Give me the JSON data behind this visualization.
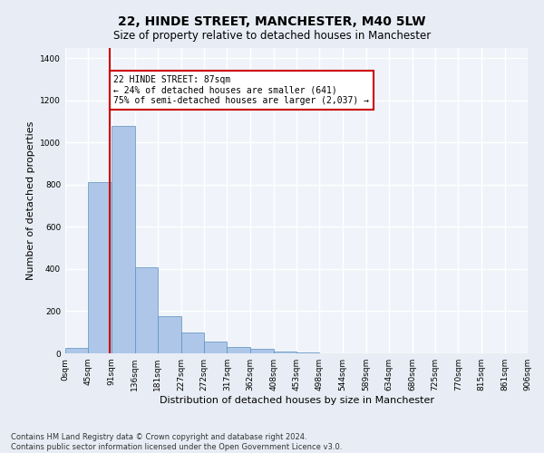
{
  "title": "22, HINDE STREET, MANCHESTER, M40 5LW",
  "subtitle": "Size of property relative to detached houses in Manchester",
  "xlabel": "Distribution of detached houses by size in Manchester",
  "ylabel": "Number of detached properties",
  "footer_line1": "Contains HM Land Registry data © Crown copyright and database right 2024.",
  "footer_line2": "Contains public sector information licensed under the Open Government Licence v3.0.",
  "annotation_title": "22 HINDE STREET: 87sqm",
  "annotation_line1": "← 24% of detached houses are smaller (641)",
  "annotation_line2": "75% of semi-detached houses are larger (2,037) →",
  "property_size": 87,
  "bar_edges": [
    0,
    45,
    91,
    136,
    181,
    227,
    272,
    317,
    362,
    408,
    453,
    498,
    544,
    589,
    634,
    680,
    725,
    770,
    815,
    861,
    906
  ],
  "bar_heights": [
    25,
    810,
    1080,
    410,
    178,
    100,
    55,
    30,
    20,
    8,
    3,
    2,
    1,
    0,
    0,
    0,
    0,
    0,
    0,
    0
  ],
  "bar_color": "#aec6e8",
  "bar_edge_color": "#5a8fc0",
  "red_line_x": 87,
  "red_line_color": "#cc0000",
  "annotation_box_color": "#cc0000",
  "ylim": [
    0,
    1450
  ],
  "yticks": [
    0,
    200,
    400,
    600,
    800,
    1000,
    1200,
    1400
  ],
  "bg_color": "#e8edf5",
  "plot_bg_color": "#f0f4fa",
  "grid_color": "#ffffff",
  "title_fontsize": 10,
  "subtitle_fontsize": 8.5,
  "tick_fontsize": 6.5,
  "label_fontsize": 8,
  "footer_fontsize": 6,
  "annotation_fontsize": 7
}
